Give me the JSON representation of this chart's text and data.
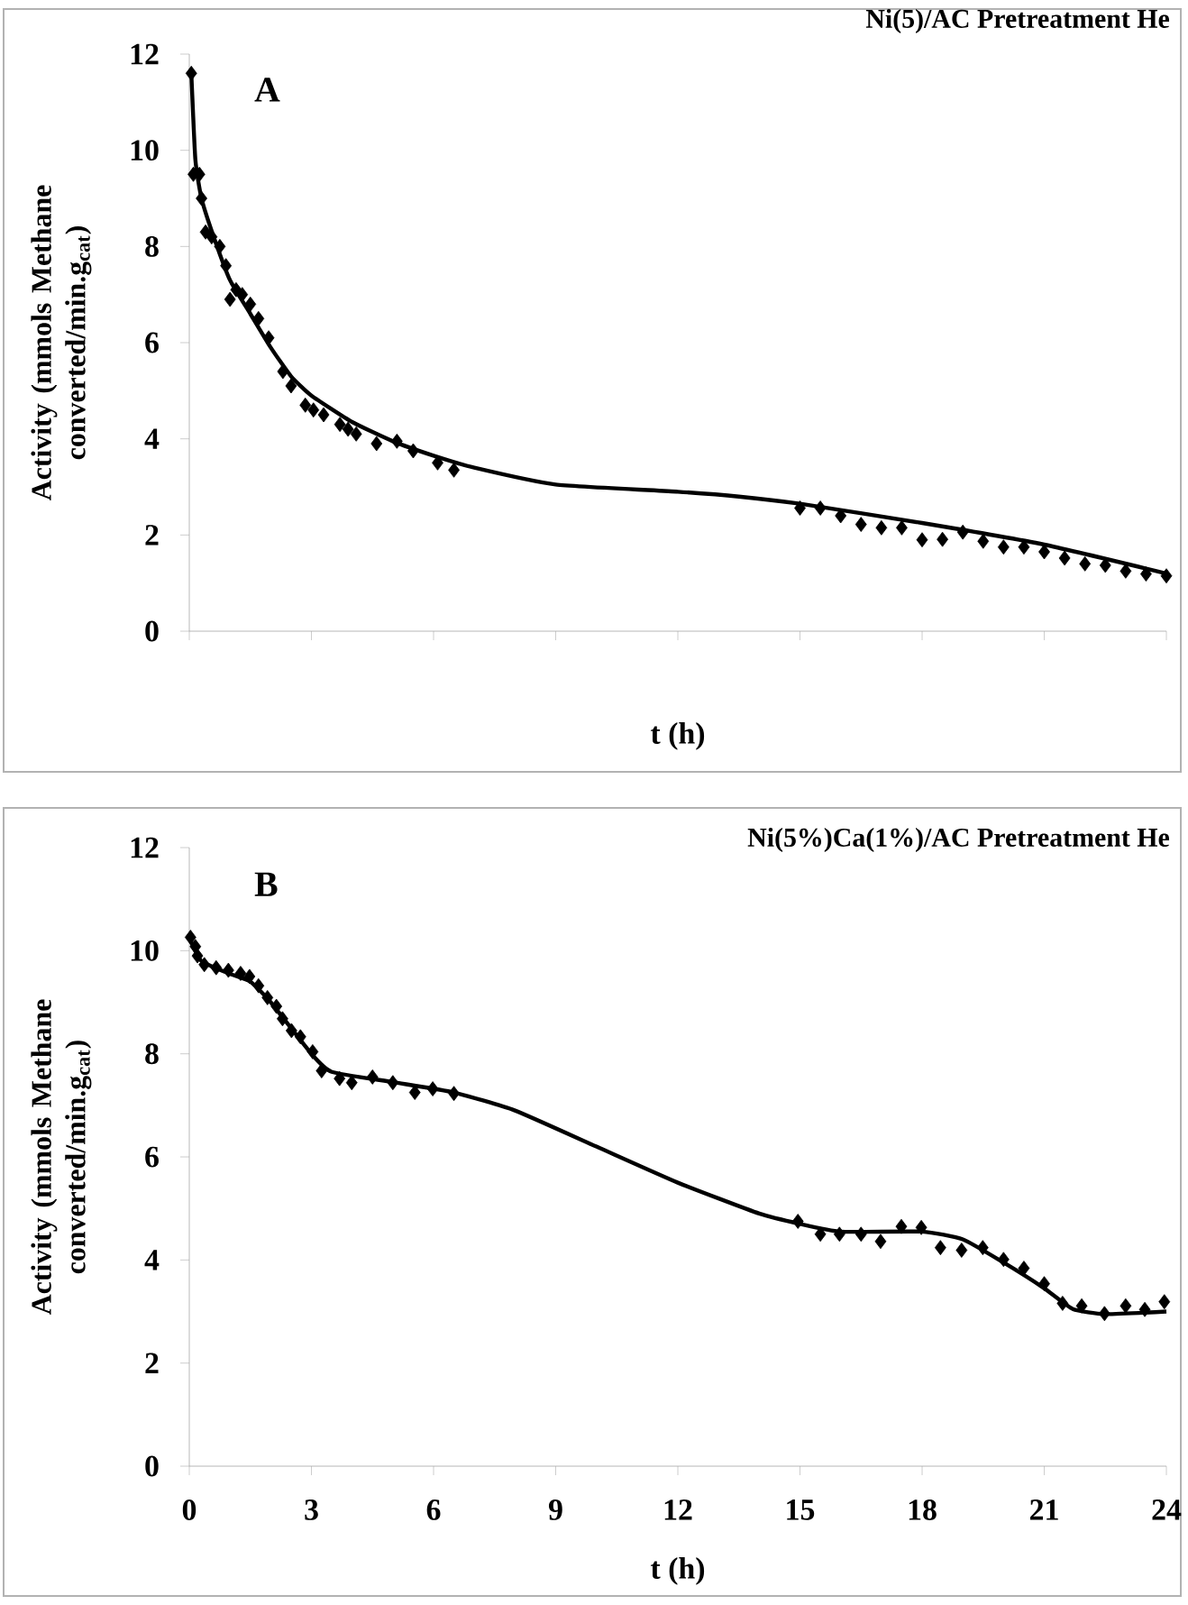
{
  "chart_data": [
    {
      "type": "scatter",
      "title": "Ni(5)/AC Pretreatment He",
      "annotations": [
        "A"
      ],
      "xlabel": "t (h)",
      "ylabel": "Activity (mmols Methane converted/min.g$_{cat}$)",
      "xlim": [
        0,
        24
      ],
      "xticks": [
        {
          "value": 0,
          "label": null
        },
        {
          "value": 3,
          "label": null
        },
        {
          "value": 6,
          "label": null
        },
        {
          "value": 9,
          "label": null
        },
        {
          "value": 12,
          "label": null
        },
        {
          "value": 15,
          "label": null
        },
        {
          "value": 18,
          "label": null
        },
        {
          "value": 21,
          "label": null
        },
        {
          "value": 24,
          "label": null
        }
      ],
      "ylim": [
        0,
        12
      ],
      "yticks": [
        0,
        2,
        4,
        6,
        8,
        10,
        12
      ],
      "tick_labels": "y",
      "series": [
        {
          "color": "#000000",
          "marker": "diamond",
          "x": [
            0.05,
            0.1,
            0.25,
            0.3,
            0.4,
            0.55,
            0.75,
            0.9,
            1.0,
            1.15,
            1.3,
            1.5,
            1.7,
            1.95,
            2.3,
            2.5,
            2.85,
            3.05,
            3.3,
            3.7,
            3.9,
            4.1,
            4.6,
            5.1,
            5.5,
            6.1,
            6.5,
            15.0,
            15.5,
            16.0,
            16.5,
            17.0,
            17.5,
            18.0,
            18.5,
            19.0,
            19.5,
            20.0,
            20.5,
            21.0,
            21.5,
            22.0,
            22.5,
            23.0,
            23.5,
            24.0
          ],
          "values": [
            11.6,
            9.5,
            9.5,
            9.0,
            8.3,
            8.2,
            8.0,
            7.6,
            6.9,
            7.1,
            7.0,
            6.8,
            6.5,
            6.1,
            5.4,
            5.1,
            4.7,
            4.6,
            4.5,
            4.3,
            4.2,
            4.1,
            3.9,
            3.95,
            3.75,
            3.5,
            3.35,
            2.56,
            2.56,
            2.4,
            2.22,
            2.15,
            2.15,
            1.9,
            1.91,
            2.06,
            1.87,
            1.75,
            1.75,
            1.65,
            1.52,
            1.4,
            1.37,
            1.25,
            1.19,
            1.15
          ]
        },
        {
          "type": "line",
          "color": "#000000",
          "x": [
            0.05,
            0.15,
            0.3,
            0.6,
            1,
            1.5,
            2,
            2.5,
            3,
            4,
            5,
            6,
            7,
            9,
            12,
            13.5,
            15,
            18,
            21,
            24
          ],
          "values": [
            11.6,
            9.8,
            9.0,
            8.2,
            7.3,
            6.6,
            5.9,
            5.3,
            4.9,
            4.35,
            3.95,
            3.65,
            3.4,
            3.05,
            2.9,
            2.8,
            2.65,
            2.25,
            1.8,
            1.2
          ]
        }
      ]
    },
    {
      "type": "scatter",
      "title": "Ni(5%)Ca(1%)/AC Pretreatment He",
      "annotations": [
        "B"
      ],
      "xlabel": "t (h)",
      "ylabel": "Activity (mmols Methane converted/min.g$_{cat}$)",
      "xlim": [
        0,
        24
      ],
      "xticks": [
        0,
        3,
        6,
        9,
        12,
        15,
        18,
        21,
        24
      ],
      "ylim": [
        0,
        12
      ],
      "yticks": [
        0,
        2,
        4,
        6,
        8,
        10,
        12
      ],
      "series": [
        {
          "color": "#000000",
          "marker": "diamond",
          "x": [
            0.03,
            0.15,
            0.2,
            0.37,
            0.66,
            0.96,
            1.26,
            1.48,
            1.7,
            1.92,
            2.14,
            2.29,
            2.51,
            2.73,
            3.03,
            3.25,
            3.69,
            3.99,
            4.5,
            5.0,
            5.54,
            5.98,
            6.5,
            14.95,
            15.5,
            15.97,
            16.5,
            16.98,
            17.49,
            17.98,
            18.45,
            18.97,
            19.49,
            20.0,
            20.5,
            21.0,
            21.45,
            21.92,
            22.48,
            23.0,
            23.47,
            23.95
          ],
          "values": [
            10.26,
            10.08,
            9.9,
            9.73,
            9.67,
            9.62,
            9.56,
            9.5,
            9.32,
            9.09,
            8.92,
            8.68,
            8.45,
            8.33,
            8.04,
            7.67,
            7.52,
            7.44,
            7.55,
            7.44,
            7.25,
            7.32,
            7.23,
            4.75,
            4.5,
            4.5,
            4.5,
            4.36,
            4.65,
            4.63,
            4.24,
            4.19,
            4.24,
            4.01,
            3.84,
            3.54,
            3.16,
            3.11,
            2.96,
            3.11,
            3.04,
            3.19
          ]
        },
        {
          "type": "line",
          "color": "#000000",
          "x": [
            0,
            0.3,
            1,
            1.5,
            2,
            3,
            3.5,
            5,
            6.5,
            8,
            10,
            12,
            14,
            15,
            16,
            18,
            19,
            20,
            21,
            21.7,
            22.5,
            24
          ],
          "values": [
            10.25,
            9.8,
            9.55,
            9.4,
            9.0,
            8.0,
            7.65,
            7.45,
            7.25,
            6.9,
            6.2,
            5.5,
            4.9,
            4.7,
            4.55,
            4.55,
            4.4,
            3.95,
            3.45,
            3.05,
            2.95,
            3.0
          ]
        }
      ]
    }
  ]
}
